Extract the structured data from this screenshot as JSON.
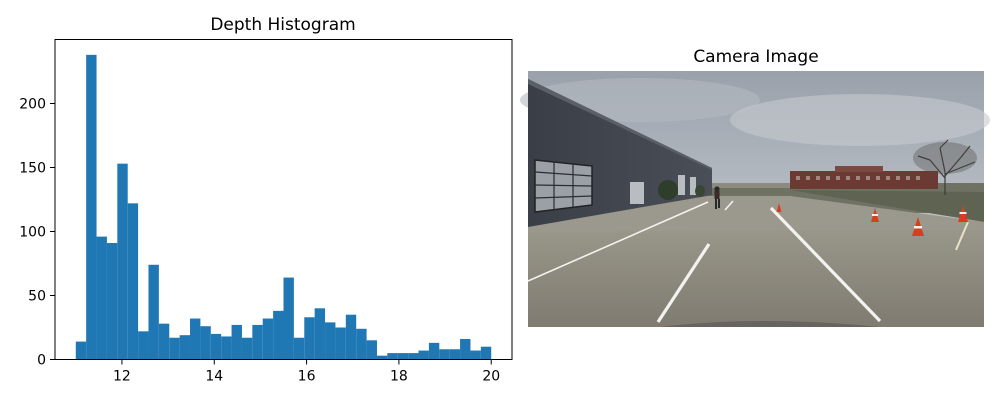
{
  "chart_data": {
    "type": "bar",
    "title": "Depth Histogram",
    "xlabel": "",
    "ylabel": "",
    "xlim": [
      10.55,
      20.45
    ],
    "ylim": [
      0,
      250
    ],
    "xticks": [
      12,
      14,
      16,
      18,
      20
    ],
    "yticks": [
      0,
      50,
      100,
      150,
      200
    ],
    "bin_start": 11.0,
    "bin_width": 0.225,
    "values": [
      14,
      238,
      96,
      91,
      153,
      122,
      22,
      74,
      28,
      17,
      19,
      32,
      26,
      20,
      18,
      27,
      17,
      27,
      32,
      38,
      64,
      17,
      33,
      40,
      29,
      25,
      35,
      24,
      15,
      3,
      5,
      5,
      5,
      7,
      13,
      8,
      8,
      16,
      7,
      10
    ],
    "bar_color": "#1f77b4",
    "grid": false
  },
  "image_panel": {
    "title": "Camera Image"
  }
}
